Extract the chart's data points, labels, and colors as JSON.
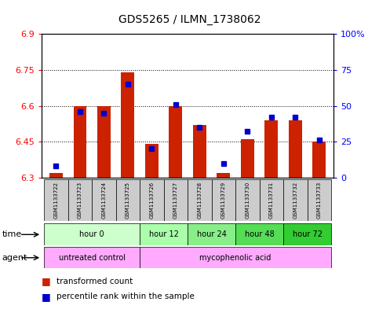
{
  "title": "GDS5265 / ILMN_1738062",
  "samples": [
    "GSM1133722",
    "GSM1133723",
    "GSM1133724",
    "GSM1133725",
    "GSM1133726",
    "GSM1133727",
    "GSM1133728",
    "GSM1133729",
    "GSM1133730",
    "GSM1133731",
    "GSM1133732",
    "GSM1133733"
  ],
  "red_values": [
    6.32,
    6.6,
    6.6,
    6.74,
    6.44,
    6.6,
    6.52,
    6.32,
    6.46,
    6.54,
    6.54,
    6.45
  ],
  "blue_values": [
    8,
    46,
    45,
    65,
    20,
    51,
    35,
    10,
    32,
    42,
    42,
    26
  ],
  "ylim_left": [
    6.3,
    6.9
  ],
  "ylim_right": [
    0,
    100
  ],
  "yticks_left": [
    6.3,
    6.45,
    6.6,
    6.75,
    6.9
  ],
  "yticks_right": [
    0,
    25,
    50,
    75,
    100
  ],
  "ytick_labels_left": [
    "6.3",
    "6.45",
    "6.6",
    "6.75",
    "6.9"
  ],
  "ytick_labels_right": [
    "0",
    "25",
    "50",
    "75",
    "100%"
  ],
  "bar_bottom": 6.3,
  "red_color": "#cc2200",
  "blue_color": "#0000cc",
  "time_groups": [
    {
      "label": "hour 0",
      "start": 0,
      "end": 4,
      "color": "#ccffcc"
    },
    {
      "label": "hour 12",
      "start": 4,
      "end": 6,
      "color": "#aaffaa"
    },
    {
      "label": "hour 24",
      "start": 6,
      "end": 8,
      "color": "#88ee88"
    },
    {
      "label": "hour 48",
      "start": 8,
      "end": 10,
      "color": "#55dd55"
    },
    {
      "label": "hour 72",
      "start": 10,
      "end": 12,
      "color": "#33cc33"
    }
  ],
  "agent_starts": [
    0,
    4
  ],
  "agent_ends": [
    4,
    12
  ],
  "agent_labels": [
    "untreated control",
    "mycophenolic acid"
  ],
  "agent_colors": [
    "#ffaaff",
    "#ffaaff"
  ],
  "background_color": "#ffffff",
  "sample_bg_color": "#cccccc",
  "legend_red": "transformed count",
  "legend_blue": "percentile rank within the sample",
  "time_label": "time",
  "agent_label": "agent",
  "grid_dotted_ticks": [
    6.45,
    6.6,
    6.75
  ]
}
